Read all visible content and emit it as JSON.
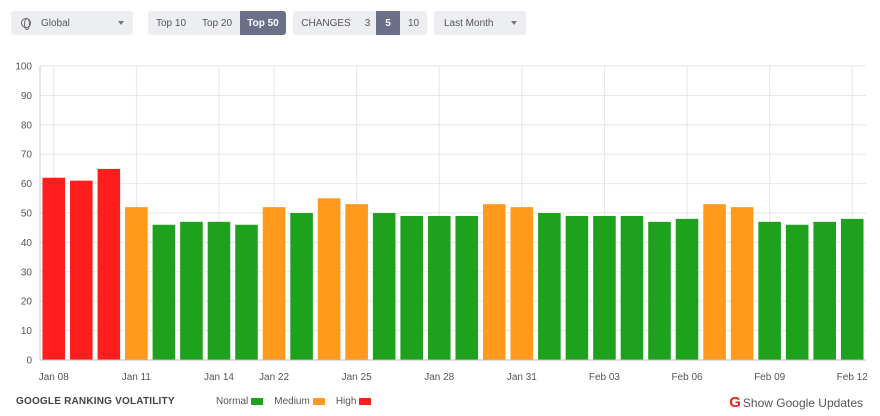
{
  "filters": {
    "region": "Global",
    "top_options": [
      "Top 10",
      "Top 20",
      "Top 50"
    ],
    "top_selected": 2,
    "changes_label": "CHANGES",
    "changes_options": [
      "3",
      "5",
      "10"
    ],
    "changes_selected": 1,
    "period": "Last Month"
  },
  "footer": {
    "title": "GOOGLE RANKING VOLATILITY",
    "legend": [
      {
        "label": "Normal",
        "color": "#1ea21e"
      },
      {
        "label": "Medium",
        "color": "#ff9a1c"
      },
      {
        "label": "High",
        "color": "#ff1e1e"
      }
    ],
    "google_updates_label": "Show Google Updates",
    "google_icon": "G"
  },
  "colors": {
    "normal": "#1ea21e",
    "medium": "#ff9a1c",
    "high": "#ff1e1e",
    "grid": "#e6e6e6",
    "axis": "#999999"
  },
  "chart_data": {
    "type": "bar",
    "title": "",
    "xlabel": "",
    "ylabel": "",
    "ylim": [
      0,
      100
    ],
    "yticks": [
      0,
      10,
      20,
      30,
      40,
      50,
      60,
      70,
      80,
      90,
      100
    ],
    "grid": true,
    "x_tick_labels": [
      "Jan 08",
      "Jan 11",
      "Jan 14",
      "Jan 22",
      "Jan 25",
      "Jan 28",
      "Jan 31",
      "Feb 03",
      "Feb 06",
      "Feb 09",
      "Feb 12"
    ],
    "x_tick_bar_index": [
      0,
      3,
      6,
      8,
      11,
      14,
      17,
      20,
      23,
      26,
      29
    ],
    "values": [
      62,
      61,
      65,
      52,
      46,
      47,
      47,
      46,
      52,
      50,
      55,
      53,
      50,
      49,
      49,
      49,
      53,
      52,
      50,
      49,
      49,
      49,
      47,
      48,
      53,
      52,
      47,
      46,
      47,
      48
    ],
    "levels": [
      "high",
      "high",
      "high",
      "medium",
      "normal",
      "normal",
      "normal",
      "normal",
      "medium",
      "normal",
      "medium",
      "medium",
      "normal",
      "normal",
      "normal",
      "normal",
      "medium",
      "medium",
      "normal",
      "normal",
      "normal",
      "normal",
      "normal",
      "normal",
      "medium",
      "medium",
      "normal",
      "normal",
      "normal",
      "normal"
    ]
  }
}
